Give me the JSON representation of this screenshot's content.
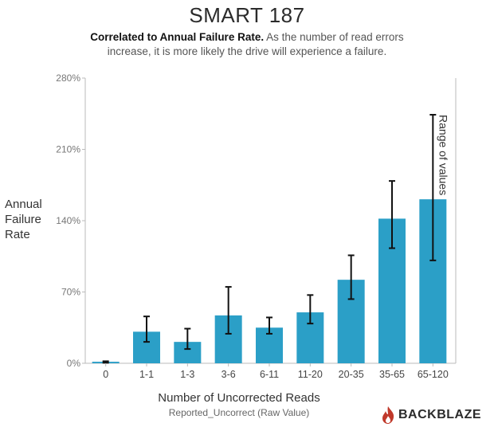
{
  "page": {
    "title": "SMART 187",
    "subtitle_bold": "Correlated to Annual Failure Rate.",
    "subtitle_rest": " As the number of read errors increase, it is more likely the drive will experience a failure.",
    "y_axis_label": "Annual Failure Rate",
    "x_axis_label": "Number of Uncorrected Reads",
    "x_axis_sublabel": "Reported_Uncorrect (Raw Value)",
    "logo_text": "BACKBLAZE",
    "logo_icon": "flame-icon"
  },
  "colors": {
    "bar": "#2b9fc7",
    "error_bar": "#111111",
    "axis": "#bbbbbb",
    "logo_flame": "#c0392b"
  },
  "chart_data": {
    "type": "bar",
    "title": "SMART 187",
    "xlabel": "Number of Uncorrected Reads",
    "ylabel": "Annual Failure Rate",
    "categories": [
      "0",
      "1-1",
      "1-3",
      "3-6",
      "6-11",
      "11-20",
      "20-35",
      "35-65",
      "65-120"
    ],
    "values": [
      1.5,
      31,
      21,
      47,
      35,
      50,
      82,
      142,
      161
    ],
    "error_low": [
      0.5,
      21,
      14,
      29,
      29,
      39,
      63,
      113,
      101
    ],
    "error_high": [
      2,
      46,
      34,
      75,
      45,
      67,
      106,
      179,
      244
    ],
    "ylim": [
      0,
      280
    ],
    "yticks": [
      0,
      70,
      140,
      210,
      280
    ],
    "ytick_labels": [
      "0%",
      "70%",
      "140%",
      "210%",
      "280%"
    ],
    "annotation": "Range of values",
    "grid": false,
    "legend": "none"
  }
}
